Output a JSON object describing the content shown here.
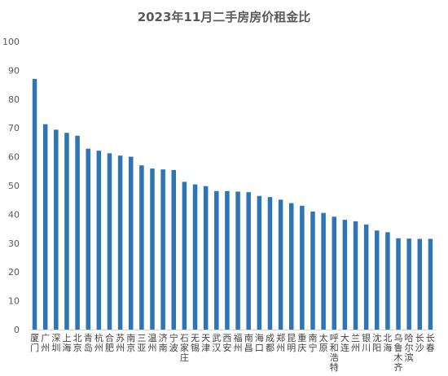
{
  "chart_data": {
    "type": "bar",
    "title": "2023年11月二手房房价租金比",
    "xlabel": "",
    "ylabel": "",
    "ylim": [
      0,
      100
    ],
    "yticks": [
      0,
      10,
      20,
      30,
      40,
      50,
      60,
      70,
      80,
      90,
      100
    ],
    "grid": false,
    "legend": "none",
    "bar_color": "#2E75B6",
    "categories": [
      "厦门",
      "广州",
      "深圳",
      "上海",
      "北京",
      "青岛",
      "杭州",
      "合肥",
      "苏州",
      "南京",
      "三亚",
      "温州",
      "济南",
      "宁波",
      "石家庄",
      "无锡",
      "天津",
      "武汉",
      "西安",
      "福州",
      "南昌",
      "海口",
      "成都",
      "郑州",
      "昆明",
      "重庆",
      "南宁",
      "太原",
      "呼和浩特",
      "大连",
      "兰州",
      "银川",
      "沈阳",
      "北海",
      "乌鲁木齐",
      "哈尔滨",
      "长沙",
      "长春"
    ],
    "values": [
      87.0,
      71.3,
      69.4,
      68.3,
      67.3,
      62.8,
      62.1,
      61.2,
      60.4,
      60.0,
      57.0,
      55.9,
      55.6,
      55.4,
      51.3,
      50.4,
      49.8,
      48.1,
      48.1,
      47.9,
      47.7,
      46.4,
      46.0,
      45.1,
      43.9,
      43.0,
      41.0,
      40.5,
      39.2,
      38.1,
      37.6,
      36.5,
      34.4,
      33.8,
      31.7,
      31.6,
      31.5,
      31.5
    ]
  }
}
